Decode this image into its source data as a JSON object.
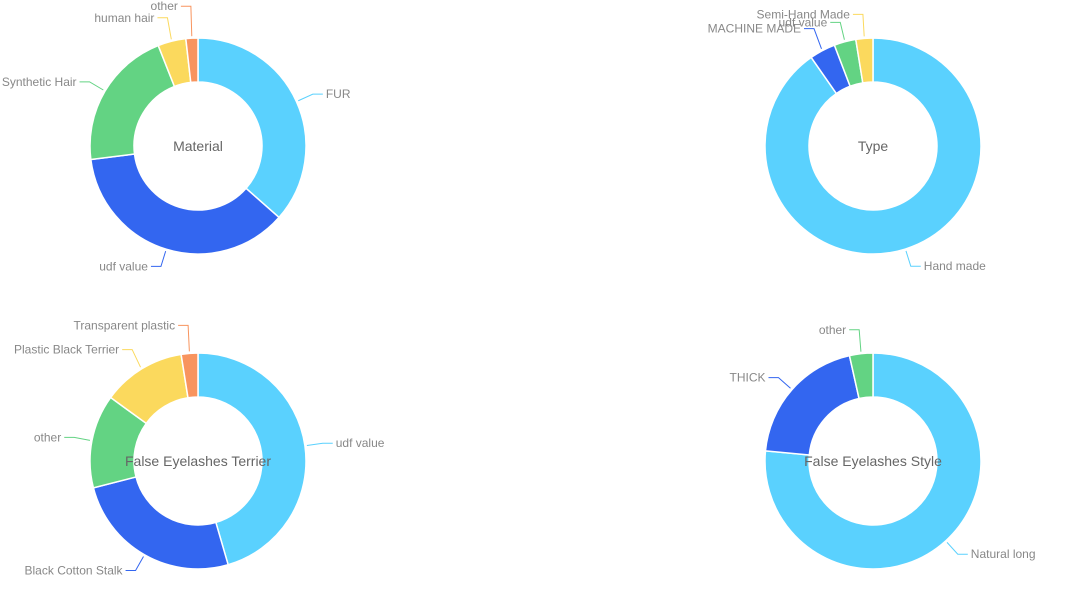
{
  "colors": {
    "light_blue": "#5ad1fe",
    "blue": "#3366f0",
    "green": "#63d383",
    "yellow": "#fbd95d",
    "orange": "#f8945e",
    "label_text": "#888888",
    "title_text": "#666666"
  },
  "chart_data": [
    {
      "type": "pie",
      "donut": true,
      "title": "Material",
      "slices": [
        {
          "label": "FUR",
          "value": 36.5,
          "color": "#5ad1fe"
        },
        {
          "label": "udf value",
          "value": 36.5,
          "color": "#3366f0"
        },
        {
          "label": "Synthetic Hair",
          "value": 21.0,
          "color": "#63d383"
        },
        {
          "label": "human hair",
          "value": 4.2,
          "color": "#fbd95d"
        },
        {
          "label": "other",
          "value": 1.8,
          "color": "#f8945e"
        }
      ]
    },
    {
      "type": "pie",
      "donut": true,
      "title": "Type",
      "slices": [
        {
          "label": "Hand made",
          "value": 88.5,
          "color": "#5ad1fe"
        },
        {
          "label": "MACHINE MADE",
          "value": 3.8,
          "color": "#3366f0"
        },
        {
          "label": "udf value",
          "value": 3.2,
          "color": "#63d383"
        },
        {
          "label": "Semi-Hand Made",
          "value": 2.5,
          "color": "#fbd95d"
        }
      ]
    },
    {
      "type": "pie",
      "donut": true,
      "title": "False Eyelashes Terrier",
      "slices": [
        {
          "label": "udf value",
          "value": 45.5,
          "color": "#5ad1fe"
        },
        {
          "label": "Black Cotton Stalk",
          "value": 25.5,
          "color": "#3366f0"
        },
        {
          "label": "other",
          "value": 14.0,
          "color": "#63d383"
        },
        {
          "label": "Plastic Black Terrier",
          "value": 12.5,
          "color": "#fbd95d"
        },
        {
          "label": "Transparent plastic",
          "value": 2.5,
          "color": "#f8945e"
        }
      ]
    },
    {
      "type": "pie",
      "donut": true,
      "title": "False Eyelashes Style",
      "slices": [
        {
          "label": "Natural long",
          "value": 76.5,
          "color": "#5ad1fe"
        },
        {
          "label": "THICK",
          "value": 20.0,
          "color": "#3366f0"
        },
        {
          "label": "other",
          "value": 3.5,
          "color": "#63d383"
        }
      ]
    }
  ]
}
